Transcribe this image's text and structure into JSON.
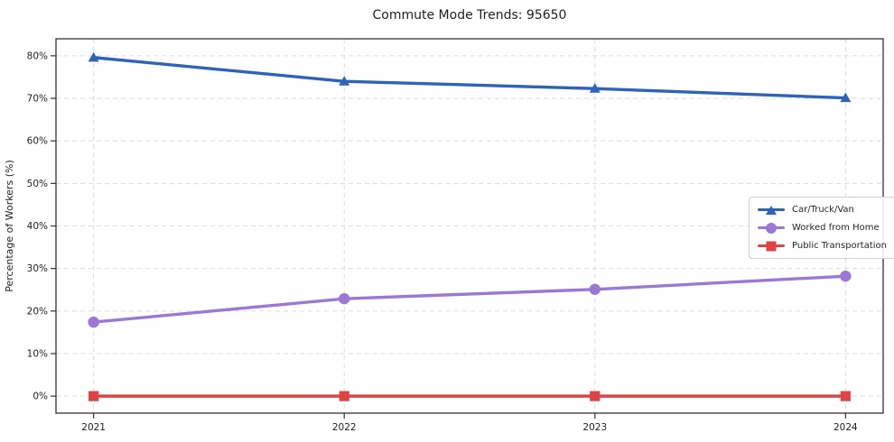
{
  "title": "Commute Mode Trends: 95650",
  "colors": {
    "car": "#2d63b8",
    "home": "#9b78d6",
    "transit": "#dd4545",
    "grid": "#dcdcdc",
    "spine": "#333333",
    "text": "#1f1f1f",
    "legend_border": "#cfcfcf"
  },
  "chart_data": {
    "type": "line",
    "title": "Commute Mode Trends: 95650",
    "xlabel": "",
    "ylabel": "Percentage of Workers (%)",
    "x": [
      2021,
      2022,
      2023,
      2024
    ],
    "xticks": [
      "2021",
      "2022",
      "2023",
      "2024"
    ],
    "yticks": [
      "0%",
      "10%",
      "20%",
      "30%",
      "40%",
      "50%",
      "60%",
      "70%",
      "80%"
    ],
    "ytick_values": [
      0,
      10,
      20,
      30,
      40,
      50,
      60,
      70,
      80
    ],
    "xlim": [
      2020.85,
      2024.15
    ],
    "ylim": [
      -4,
      84
    ],
    "grid": true,
    "grid_style": "dashed",
    "legend_position": "center-right",
    "series": [
      {
        "name": "Car/Truck/Van",
        "marker": "triangle",
        "color": "#2d63b8",
        "values": [
          79.6,
          74.0,
          72.3,
          70.1
        ]
      },
      {
        "name": "Worked from Home",
        "marker": "circle",
        "color": "#9b78d6",
        "values": [
          17.4,
          22.9,
          25.1,
          28.2
        ]
      },
      {
        "name": "Public Transportation",
        "marker": "square",
        "color": "#dd4545",
        "values": [
          0.0,
          0.0,
          0.0,
          0.0
        ]
      }
    ]
  }
}
